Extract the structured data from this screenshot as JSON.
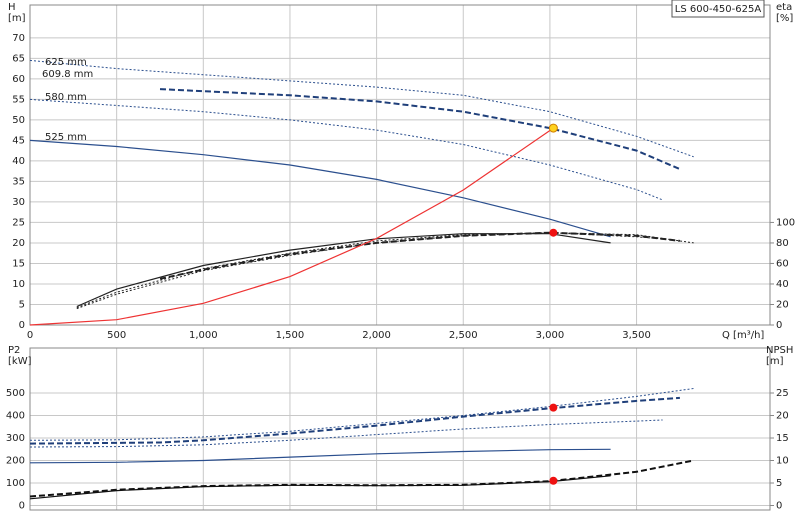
{
  "chart_data": [
    {
      "type": "line",
      "title": "LS 600-450-625A",
      "y_label": [
        "H",
        "[m]"
      ],
      "y2_label": [
        "eta",
        "[%]"
      ],
      "x_label": "Q [m³/h]",
      "xlim": [
        0,
        4270
      ],
      "xticks": [
        0,
        500,
        {
          "value": 1000,
          "label": "1,000"
        },
        {
          "value": 1500,
          "label": "1,500"
        },
        {
          "value": 2000,
          "label": "2,000"
        },
        {
          "value": 2500,
          "label": "2,500"
        },
        {
          "value": 3000,
          "label": "3,000"
        },
        {
          "value": 3500,
          "label": "3,500"
        }
      ],
      "ylim": [
        0,
        78
      ],
      "yticks": [
        0,
        5,
        10,
        15,
        20,
        25,
        30,
        35,
        40,
        45,
        50,
        55,
        60,
        65,
        70
      ],
      "y2lim": [
        0,
        312
      ],
      "y2ticks": [
        0,
        20,
        40,
        60,
        80,
        100
      ],
      "grid": true,
      "series": [
        {
          "name": "625 mm",
          "color": "#2b4f8e",
          "dash": "dotted",
          "x": [
            0,
            500,
            1000,
            1500,
            2000,
            2500,
            3000,
            3500,
            3830
          ],
          "values": [
            64.5,
            62.5,
            61,
            59.5,
            58,
            56,
            52,
            46,
            41
          ]
        },
        {
          "name": "609.8 mm",
          "color": "#1f3f7a",
          "dash": "dashed",
          "x": [
            750,
            1000,
            1500,
            2000,
            2500,
            3000,
            3500,
            3750
          ],
          "values": [
            57.5,
            57,
            56,
            54.5,
            52,
            48,
            42.5,
            38
          ]
        },
        {
          "name": "580 mm",
          "color": "#2b4f8e",
          "dash": "dotted",
          "x": [
            0,
            500,
            1000,
            1500,
            2000,
            2500,
            3000,
            3500,
            3650
          ],
          "values": [
            55,
            53.5,
            52,
            50,
            47.5,
            44,
            39,
            33,
            30.5
          ]
        },
        {
          "name": "525 mm",
          "color": "#2b4f8e",
          "dash": "solid",
          "x": [
            0,
            500,
            1000,
            1500,
            2000,
            2500,
            3000,
            3350
          ],
          "values": [
            45,
            43.5,
            41.5,
            39,
            35.5,
            31,
            25.8,
            21.5
          ]
        },
        {
          "color": "#222222",
          "dash": "dotted",
          "axis": "y2",
          "x": [
            270,
            500,
            1000,
            1500,
            2000,
            2500,
            3000,
            3500,
            3830
          ],
          "values": [
            16,
            30,
            53,
            68,
            80,
            87,
            90,
            88,
            80
          ]
        },
        {
          "color": "#222222",
          "dash": "dashed",
          "axis": "y2",
          "x": [
            750,
            1000,
            1500,
            2000,
            2500,
            3000,
            3500,
            3750
          ],
          "values": [
            45,
            54,
            69,
            80,
            87,
            90,
            87,
            82
          ]
        },
        {
          "color": "#222222",
          "dash": "dotted",
          "axis": "y2",
          "x": [
            270,
            500,
            1000,
            1500,
            2000,
            2500,
            3000,
            3500,
            3650
          ],
          "values": [
            17,
            32,
            55,
            70,
            82,
            88,
            90,
            86,
            84
          ]
        },
        {
          "color": "#222222",
          "dash": "solid",
          "axis": "y2",
          "x": [
            270,
            500,
            1000,
            1500,
            2000,
            2500,
            3000,
            3350
          ],
          "values": [
            18,
            35,
            58,
            73,
            84,
            89,
            89,
            80
          ]
        },
        {
          "color": "#ee3333",
          "dash": "solid",
          "x": [
            0,
            500,
            1000,
            1500,
            2000,
            2500,
            3020
          ],
          "values": [
            0,
            1.3,
            5.3,
            11.8,
            21.1,
            32.9,
            48
          ]
        }
      ],
      "points": [
        {
          "x": 3020,
          "value": 48,
          "color": "#ffd21f"
        },
        {
          "x": 3020,
          "value": 90,
          "axis": "y2",
          "color": "#ee1111"
        }
      ]
    },
    {
      "type": "line",
      "y_label": [
        "P2",
        "[kW]"
      ],
      "y2_label": [
        "NPSH",
        "[m]"
      ],
      "xlim": [
        0,
        4270
      ],
      "ylim": [
        -20,
        700
      ],
      "yticks": [
        0,
        100,
        200,
        300,
        400,
        500
      ],
      "y2lim": [
        -1,
        35
      ],
      "y2ticks": [
        0,
        5,
        10,
        15,
        20,
        25
      ],
      "grid": true,
      "series": [
        {
          "color": "#2b4f8e",
          "dash": "dotted",
          "x": [
            0,
            500,
            1000,
            1500,
            2000,
            2500,
            3000,
            3500,
            3830
          ],
          "values": [
            290,
            292,
            305,
            330,
            365,
            400,
            440,
            485,
            520
          ]
        },
        {
          "color": "#1f3f7a",
          "dash": "dashed",
          "x": [
            0,
            750,
            1000,
            1500,
            2000,
            2500,
            3000,
            3500,
            3750
          ],
          "values": [
            275,
            280,
            290,
            320,
            355,
            395,
            432,
            465,
            478
          ]
        },
        {
          "color": "#2b4f8e",
          "dash": "dotted",
          "x": [
            0,
            500,
            1000,
            1500,
            2000,
            2500,
            3000,
            3500,
            3650
          ],
          "values": [
            260,
            262,
            270,
            290,
            315,
            340,
            360,
            375,
            380
          ]
        },
        {
          "color": "#2b4f8e",
          "dash": "solid",
          "x": [
            0,
            500,
            1000,
            1500,
            2000,
            2500,
            3000,
            3350
          ],
          "values": [
            190,
            192,
            200,
            215,
            230,
            240,
            248,
            250
          ]
        },
        {
          "color": "#111111",
          "dash": "dashed",
          "axis": "y2",
          "x": [
            0,
            500,
            1000,
            1500,
            2000,
            2500,
            3000,
            3500,
            3830
          ],
          "values": [
            2,
            3.5,
            4.3,
            4.6,
            4.5,
            4.6,
            5.4,
            7.5,
            10
          ]
        },
        {
          "color": "#111111",
          "dash": "solid",
          "axis": "y2",
          "x": [
            0,
            500,
            1000,
            1500,
            2000,
            2500,
            3000,
            3350
          ],
          "values": [
            1.5,
            3.3,
            4.2,
            4.5,
            4.4,
            4.5,
            5.3,
            6.6
          ]
        }
      ],
      "points": [
        {
          "x": 3020,
          "value": 435,
          "color": "#ee1111"
        },
        {
          "x": 3020,
          "value": 5.5,
          "axis": "y2",
          "color": "#ee1111"
        }
      ]
    }
  ]
}
